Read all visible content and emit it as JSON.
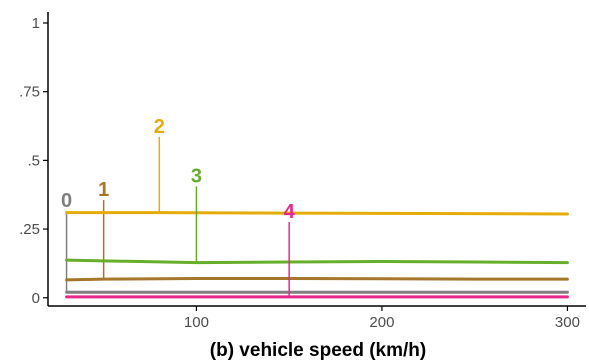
{
  "chart_data": {
    "type": "line",
    "title": "",
    "xlabel": "(b)  vehicle speed (km/h)",
    "ylabel": "",
    "xlim": [
      20,
      310
    ],
    "ylim": [
      -0.03,
      1.04
    ],
    "grid": false,
    "legend": "none",
    "x_ticks": [
      {
        "value": 100,
        "label": "100"
      },
      {
        "value": 200,
        "label": "200"
      },
      {
        "value": 300,
        "label": "300"
      }
    ],
    "y_ticks": [
      {
        "value": 0,
        "label": "0"
      },
      {
        "value": 0.25,
        "label": ".25"
      },
      {
        "value": 0.5,
        "label": ".5"
      },
      {
        "value": 0.75,
        "label": ".75"
      },
      {
        "value": 1,
        "label": "1"
      }
    ],
    "series": [
      {
        "name": "0",
        "color": "#7f7f7f",
        "x": [
          30,
          300
        ],
        "y": [
          0.02,
          0.02
        ],
        "label_x": 30,
        "label_y": 0.33
      },
      {
        "name": "1",
        "color": "#a6762a",
        "x": [
          30,
          50,
          100,
          150,
          200,
          250,
          300
        ],
        "y": [
          0.065,
          0.068,
          0.07,
          0.07,
          0.069,
          0.068,
          0.068
        ],
        "label_x": 50,
        "label_y": 0.37
      },
      {
        "name": "2",
        "color": "#e5ab0a",
        "x": [
          30,
          80,
          150,
          200,
          300
        ],
        "y": [
          0.31,
          0.31,
          0.308,
          0.307,
          0.305
        ],
        "label_x": 80,
        "label_y": 0.6
      },
      {
        "name": "3",
        "color": "#67ae2a",
        "x": [
          30,
          60,
          100,
          150,
          200,
          250,
          300
        ],
        "y": [
          0.137,
          0.133,
          0.128,
          0.13,
          0.132,
          0.13,
          0.128
        ],
        "label_x": 100,
        "label_y": 0.42
      },
      {
        "name": "4",
        "color": "#e7278a",
        "x": [
          30,
          300
        ],
        "y": [
          0.003,
          0.003
        ],
        "label_x": 150,
        "label_y": 0.29
      }
    ]
  }
}
